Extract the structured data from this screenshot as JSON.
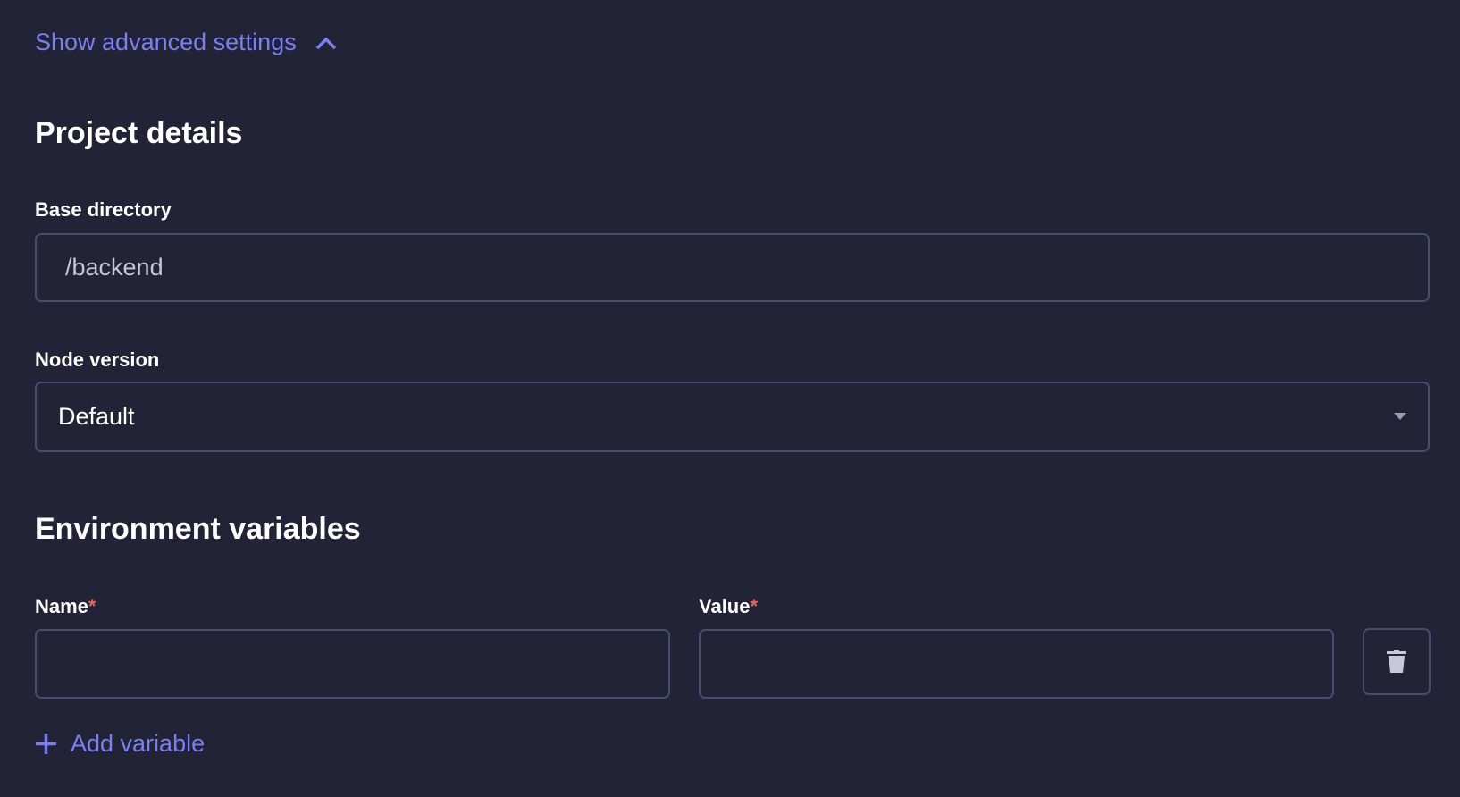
{
  "advanced_toggle": {
    "label": "Show advanced settings",
    "icon": "chevron-up-icon",
    "expanded": true
  },
  "project_details": {
    "heading": "Project details",
    "base_directory": {
      "label": "Base directory",
      "value": "/backend"
    },
    "node_version": {
      "label": "Node version",
      "value": "Default"
    }
  },
  "env_vars": {
    "heading": "Environment variables",
    "name_label": "Name",
    "value_label": "Value",
    "required_marker": "*",
    "rows": [
      {
        "name": "",
        "value": ""
      }
    ],
    "add_label": "Add variable"
  },
  "colors": {
    "background": "#222336",
    "accent": "#7b7ff0",
    "required": "#e5685c",
    "border": "#4b4c69"
  }
}
